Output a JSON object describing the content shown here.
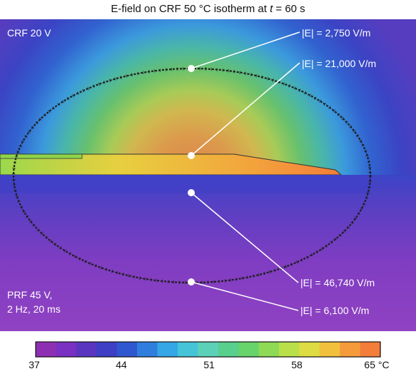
{
  "title": {
    "prefix": "E-field on CRF 50 °C isotherm at ",
    "t_symbol": "t",
    "suffix": " = 60 s"
  },
  "panel_top_label": "CRF 20 V",
  "panel_bottom_label": [
    "PRF 45 V,",
    "2 Hz, 20 ms"
  ],
  "annotations": [
    "|E| = 2,750 V/m",
    "|E| = 21,000 V/m",
    "|E| = 46,740 V/m",
    "|E| = 6,100 V/m"
  ],
  "colorbar": {
    "min": 37,
    "max": 65,
    "tick_labels": [
      "37",
      "44",
      "51",
      "58",
      "65 °C"
    ],
    "colors": [
      "#8e2fb3",
      "#7a30c2",
      "#5a36c0",
      "#3e3fc4",
      "#2f57cf",
      "#2f7ede",
      "#35a6e6",
      "#45c4d8",
      "#5dd0b8",
      "#59cf8e",
      "#67d36b",
      "#8fda55",
      "#b9df49",
      "#dddc43",
      "#f1c13e",
      "#f59b3c",
      "#f47d3a"
    ]
  },
  "colors": {
    "purple": "#8a3fc4",
    "blue": "#3f46c6",
    "isotherm": "#1e1e1e"
  }
}
